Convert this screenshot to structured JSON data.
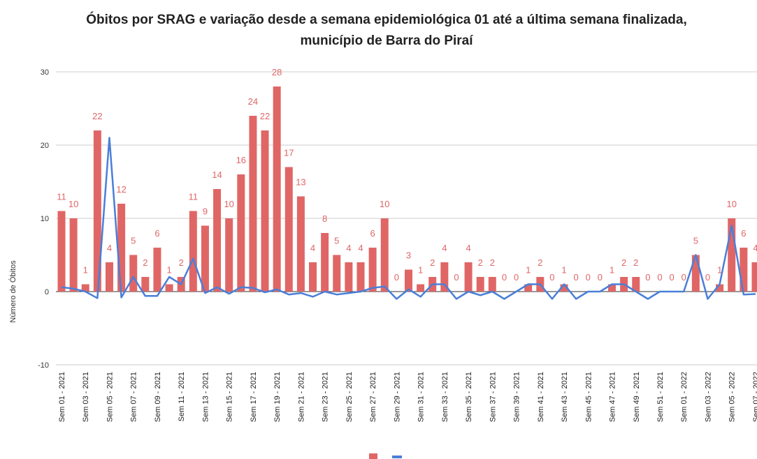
{
  "chart_data": {
    "type": "bar_line",
    "title": "Óbitos por SRAG e variação desde a semana epidemiológica 01 até a última semana finalizada,",
    "subtitle": "município de Barra do Piraí",
    "y_label": "Número de Óbitos",
    "categories": [
      "Sem 01 - 2021",
      null,
      "Sem 03 - 2021",
      null,
      "Sem 05 - 2021",
      null,
      "Sem 07 - 2021",
      null,
      "Sem 09 - 2021",
      null,
      "Sem 11 - 2021",
      null,
      "Sem 13 - 2021",
      null,
      "Sem 15 - 2021",
      null,
      "Sem 17 - 2021",
      null,
      "Sem 19 - 2021",
      null,
      "Sem 21 - 2021",
      null,
      "Sem 23 - 2021",
      null,
      "Sem 25 - 2021",
      null,
      "Sem 27 - 2021",
      null,
      "Sem 29 - 2021",
      null,
      "Sem 31 - 2021",
      null,
      "Sem 33 - 2021",
      null,
      "Sem 35 - 2021",
      null,
      "Sem 37 - 2021",
      null,
      "Sem 39 - 2021",
      null,
      "Sem 41 - 2021",
      null,
      "Sem 43 - 2021",
      null,
      "Sem 45 - 2021",
      null,
      "Sem 47 - 2021",
      null,
      "Sem 49 - 2021",
      null,
      "Sem 51 - 2021",
      null,
      "Sem 01 - 2022",
      null,
      "Sem 03 - 2022",
      null,
      "Sem 05 - 2022",
      null,
      "Sem 07 - 2022"
    ],
    "series": [
      {
        "color": "#e06666",
        "kind": "bar",
        "values": [
          11,
          10,
          1,
          22,
          4,
          12,
          5,
          2,
          6,
          1,
          2,
          11,
          9,
          14,
          10,
          16,
          24,
          22,
          28,
          17,
          13,
          4,
          8,
          5,
          4,
          4,
          6,
          10,
          0,
          3,
          1,
          2,
          4,
          0,
          4,
          2,
          2,
          0,
          0,
          1,
          2,
          0,
          1,
          0,
          0,
          0,
          1,
          2,
          2,
          0,
          0,
          0,
          0,
          5,
          0,
          1,
          10,
          6,
          4
        ]
      },
      {
        "color": "#4a7fd8",
        "kind": "line",
        "values": [
          0.6,
          0.4,
          0,
          -0.9,
          21,
          -0.8,
          2,
          -0.6,
          -0.6,
          2,
          1,
          4.5,
          -0.2,
          0.6,
          -0.3,
          0.6,
          0.5,
          -0.1,
          0.3,
          -0.4,
          -0.2,
          -0.7,
          0,
          -0.4,
          -0.2,
          0,
          0.5,
          0.7,
          -1,
          0.3,
          -0.7,
          1,
          1,
          -1,
          0,
          -0.5,
          0,
          -1,
          0,
          1,
          1,
          -1,
          1,
          -1,
          0,
          0,
          1,
          1,
          0,
          -1,
          0,
          0,
          0,
          5,
          -1,
          1,
          9,
          -0.4,
          -0.33
        ]
      }
    ],
    "ylim": [
      -10,
      30
    ],
    "yticks": [
      -10,
      0,
      10,
      20,
      30
    ],
    "grid": true
  }
}
